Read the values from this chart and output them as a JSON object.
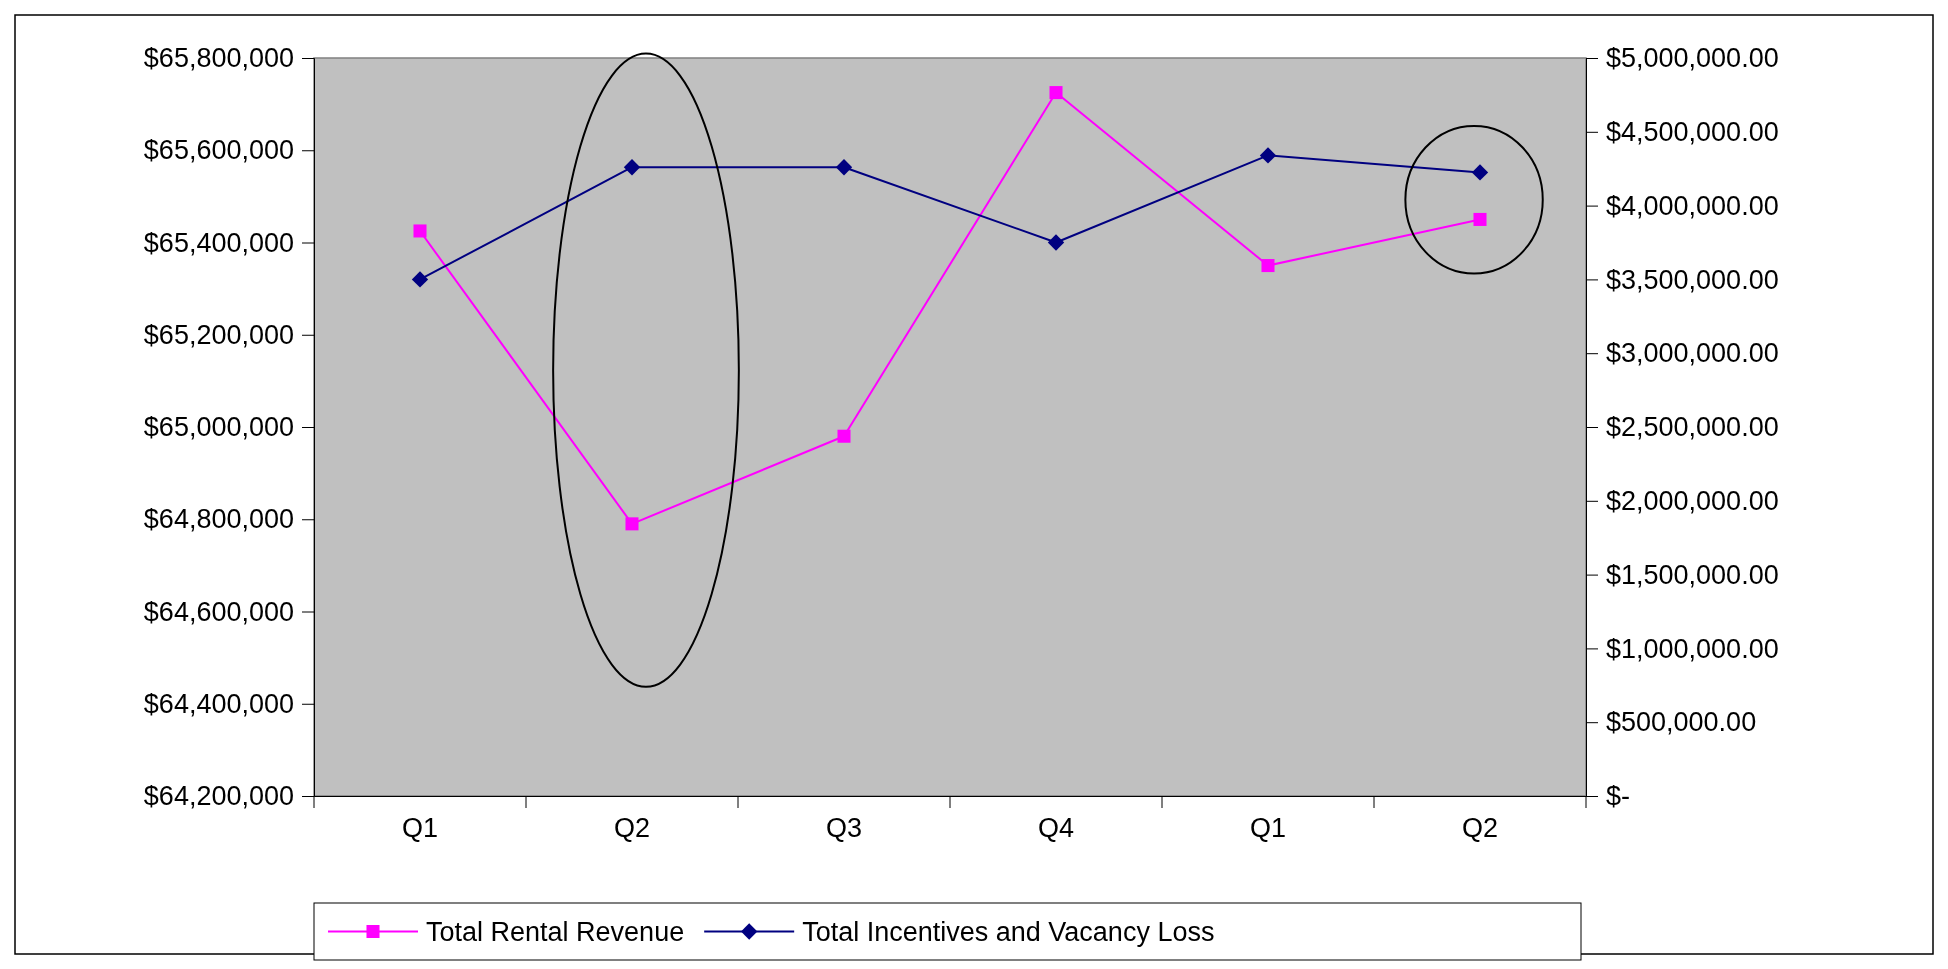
{
  "chart_data": {
    "type": "line",
    "categories": [
      "Q1",
      "Q2",
      "Q3",
      "Q4",
      "Q1",
      "Q2"
    ],
    "series": [
      {
        "name": "Total Rental Revenue",
        "color": "#ff00ff",
        "marker": "square",
        "values": [
          65425000,
          64790000,
          64980000,
          65725000,
          65350000,
          65450000
        ]
      },
      {
        "name": "Total Incentives and Vacancy Loss",
        "color": "#000080",
        "marker": "diamond",
        "axis": "y2",
        "values": [
          3500000,
          4260000,
          4260000,
          3750000,
          4340000,
          4225000
        ]
      }
    ],
    "ylim": [
      64200000,
      65800000
    ],
    "yticks": [
      {
        "value": 64200000,
        "label": "$64,200,000"
      },
      {
        "value": 64400000,
        "label": "$64,400,000"
      },
      {
        "value": 64600000,
        "label": "$64,600,000"
      },
      {
        "value": 64800000,
        "label": "$64,800,000"
      },
      {
        "value": 65000000,
        "label": "$65,000,000"
      },
      {
        "value": 65200000,
        "label": "$65,200,000"
      },
      {
        "value": 65400000,
        "label": "$65,400,000"
      },
      {
        "value": 65600000,
        "label": "$65,600,000"
      },
      {
        "value": 65800000,
        "label": "$65,800,000"
      }
    ],
    "y2lim": [
      0,
      5000000
    ],
    "y2ticks": [
      {
        "value": 0,
        "label": "$-"
      },
      {
        "value": 500000,
        "label": "$500,000.00"
      },
      {
        "value": 1000000,
        "label": "$1,000,000.00"
      },
      {
        "value": 1500000,
        "label": "$1,500,000.00"
      },
      {
        "value": 2000000,
        "label": "$2,000,000.00"
      },
      {
        "value": 2500000,
        "label": "$2,500,000.00"
      },
      {
        "value": 3000000,
        "label": "$3,000,000.00"
      },
      {
        "value": 3500000,
        "label": "$3,500,000.00"
      },
      {
        "value": 4000000,
        "label": "$4,000,000.00"
      },
      {
        "value": 4500000,
        "label": "$4,500,000.00"
      },
      {
        "value": 5000000,
        "label": "$5,000,000.00"
      }
    ],
    "legend": "bottom",
    "line_style": "solid"
  }
}
